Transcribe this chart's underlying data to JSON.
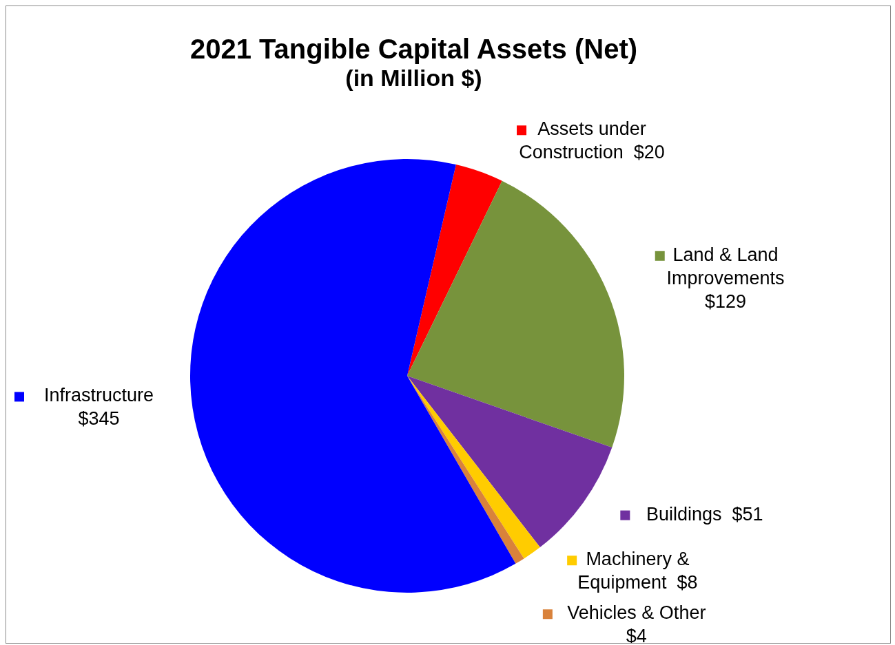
{
  "chart_data": {
    "type": "pie",
    "title": "2021 Tangible Capital Assets (Net)",
    "subtitle": "(in Million $)",
    "categories": [
      "Assets under Construction",
      "Land & Land Improvements",
      "Buildings",
      "Machinery & Equipment",
      "Vehicles & Other",
      "Infrastructure"
    ],
    "values": [
      20,
      129,
      51,
      8,
      4,
      345
    ],
    "colors": [
      "#ff0000",
      "#77933c",
      "#7030a0",
      "#ffcc00",
      "#d9823b",
      "#0000ff"
    ],
    "value_labels": [
      "$20",
      "$129",
      "$51",
      "$8",
      "$4",
      "$345"
    ],
    "legend": "right"
  }
}
